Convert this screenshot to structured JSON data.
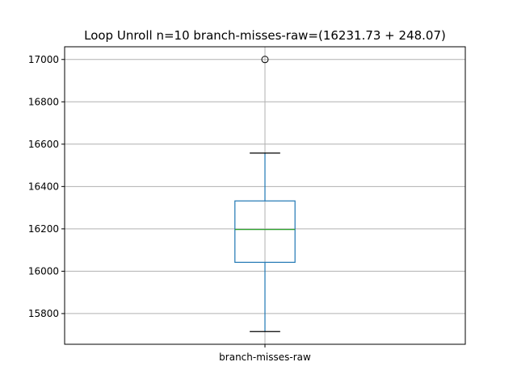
{
  "chart_data": {
    "type": "box",
    "title": "Loop Unroll n=10  branch-misses-raw=(16231.73 + 248.07)",
    "categories": [
      "branch-misses-raw"
    ],
    "xlabel": "",
    "ylabel": "",
    "ylim": [
      15655,
      17060
    ],
    "yticks": [
      15800,
      16000,
      16200,
      16400,
      16600,
      16800,
      17000
    ],
    "grid": true,
    "series": [
      {
        "category": "branch-misses-raw",
        "whisker_low": 15715,
        "q1": 16042,
        "median": 16197,
        "q3": 16332,
        "whisker_high": 16558,
        "outliers": [
          17000
        ]
      }
    ],
    "colors": {
      "box": "#1f77b4",
      "median": "#2ca02c",
      "cap": "#000000",
      "grid": "#b0b0b0"
    }
  }
}
